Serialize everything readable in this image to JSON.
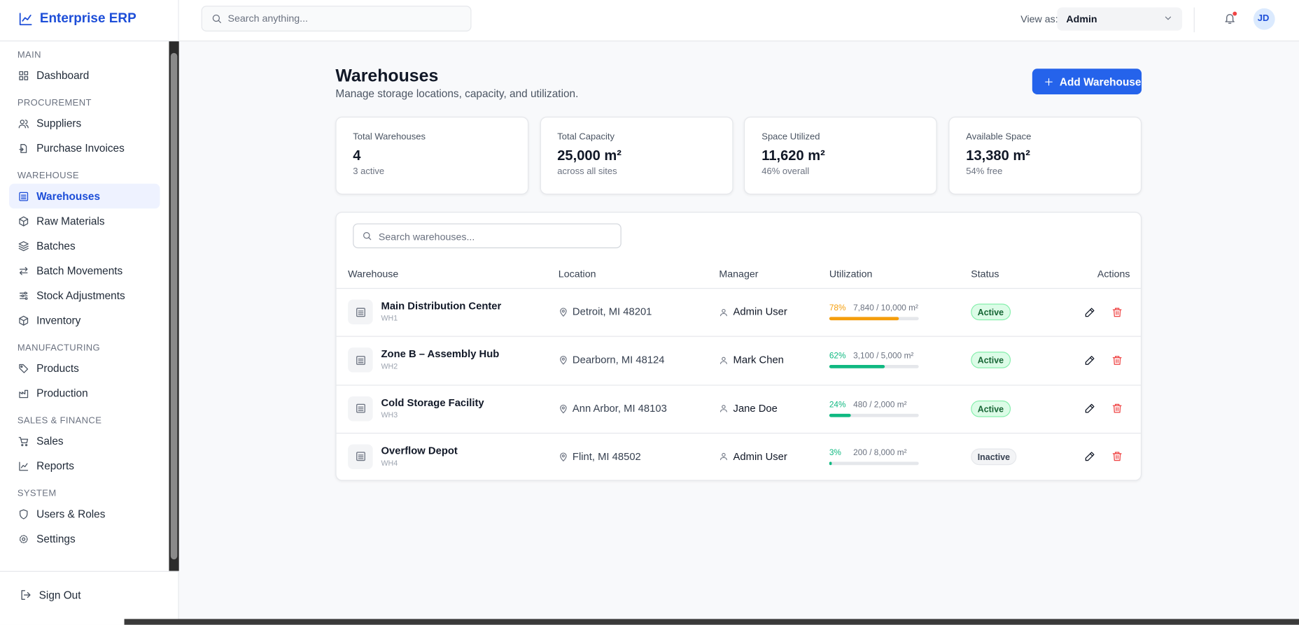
{
  "app": {
    "brand": "Enterprise ERP"
  },
  "topbar": {
    "search_placeholder": "Search anything...",
    "view_as_label": "View as:",
    "view_as_value": "Admin",
    "avatar": "JD"
  },
  "sidebar": {
    "sections": [
      {
        "title": "MAIN",
        "items": [
          {
            "label": "Dashboard"
          }
        ]
      },
      {
        "title": "PROCUREMENT",
        "items": [
          {
            "label": "Suppliers"
          },
          {
            "label": "Purchase Invoices"
          }
        ]
      },
      {
        "title": "WAREHOUSE",
        "items": [
          {
            "label": "Warehouses",
            "active": true
          },
          {
            "label": "Raw Materials"
          },
          {
            "label": "Batches"
          },
          {
            "label": "Batch Movements"
          },
          {
            "label": "Stock Adjustments"
          },
          {
            "label": "Inventory"
          }
        ]
      },
      {
        "title": "MANUFACTURING",
        "items": [
          {
            "label": "Products"
          },
          {
            "label": "Production"
          }
        ]
      },
      {
        "title": "SALES & FINANCE",
        "items": [
          {
            "label": "Sales"
          },
          {
            "label": "Reports"
          }
        ]
      },
      {
        "title": "SYSTEM",
        "items": [
          {
            "label": "Users & Roles"
          },
          {
            "label": "Settings"
          }
        ]
      }
    ],
    "sign_out": "Sign Out"
  },
  "page": {
    "title": "Warehouses",
    "subtitle": "Manage storage locations, capacity, and utilization.",
    "add_button": "Add Warehouse"
  },
  "stats": [
    {
      "label": "Total Warehouses",
      "value": "4",
      "note": "3 active"
    },
    {
      "label": "Total Capacity",
      "value": "25,000 m²",
      "note": "across all sites"
    },
    {
      "label": "Space Utilized",
      "value": "11,620 m²",
      "note": "46% overall"
    },
    {
      "label": "Available Space",
      "value": "13,380 m²",
      "note": "54% free"
    }
  ],
  "table": {
    "search_placeholder": "Search warehouses...",
    "columns": [
      "Warehouse",
      "Location",
      "Manager",
      "Utilization",
      "Status",
      "Actions"
    ],
    "rows": [
      {
        "name": "Main Distribution Center",
        "code": "WH1",
        "location": "Detroit, MI 48201",
        "manager": "Admin User",
        "utilization": 78,
        "utilization_label": "78%",
        "usage": "7,840 / 10,000 m²",
        "color": "#f59e0b",
        "status": "Active"
      },
      {
        "name": "Zone B – Assembly Hub",
        "code": "WH2",
        "location": "Dearborn, MI 48124",
        "manager": "Mark Chen",
        "utilization": 62,
        "utilization_label": "62%",
        "usage": "3,100 / 5,000 m²",
        "color": "#10b981",
        "status": "Active"
      },
      {
        "name": "Cold Storage Facility",
        "code": "WH3",
        "location": "Ann Arbor, MI 48103",
        "manager": "Jane Doe",
        "utilization": 24,
        "utilization_label": "24%",
        "usage": "480 / 2,000 m²",
        "color": "#10b981",
        "status": "Active"
      },
      {
        "name": "Overflow Depot",
        "code": "WH4",
        "location": "Flint, MI 48502",
        "manager": "Admin User",
        "utilization": 3,
        "utilization_label": "3%",
        "usage": "200 / 8,000 m²",
        "color": "#10b981",
        "status": "Inactive"
      }
    ]
  }
}
